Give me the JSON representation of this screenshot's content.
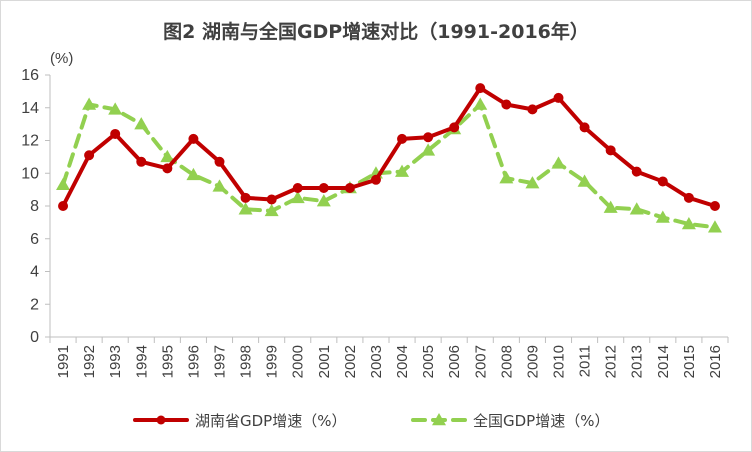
{
  "chart_data": {
    "type": "line",
    "title": "图2 湖南与全国GDP增速对比（1991-2016年）",
    "ylabel": "(%)",
    "xlabel": "",
    "ylim": [
      0,
      16
    ],
    "yticks": [
      0,
      2,
      4,
      6,
      8,
      10,
      12,
      14,
      16
    ],
    "grid": false,
    "legend_position": "bottom",
    "categories": [
      "1991",
      "1992",
      "1993",
      "1994",
      "1995",
      "1996",
      "1997",
      "1998",
      "1999",
      "2000",
      "2001",
      "2002",
      "2003",
      "2004",
      "2005",
      "2006",
      "2007",
      "2008",
      "2009",
      "2010",
      "2011",
      "2012",
      "2013",
      "2014",
      "2015",
      "2016"
    ],
    "series": [
      {
        "name": "湖南省GDP增速（%）",
        "color": "#C00000",
        "style": "solid",
        "marker": "circle",
        "values": [
          8.0,
          11.1,
          12.4,
          10.7,
          10.3,
          12.1,
          10.7,
          8.5,
          8.4,
          9.1,
          9.1,
          9.1,
          9.6,
          12.1,
          12.2,
          12.8,
          15.2,
          14.2,
          13.9,
          14.6,
          12.8,
          11.4,
          10.1,
          9.5,
          8.5,
          8.0
        ]
      },
      {
        "name": "全国GDP增速（%）",
        "color": "#92D050",
        "style": "dashed",
        "marker": "triangle",
        "values": [
          9.3,
          14.2,
          13.9,
          13.0,
          11.0,
          9.9,
          9.2,
          7.8,
          7.7,
          8.5,
          8.3,
          9.1,
          10.0,
          10.1,
          11.4,
          12.7,
          14.2,
          9.7,
          9.4,
          10.6,
          9.5,
          7.9,
          7.8,
          7.3,
          6.9,
          6.7
        ]
      }
    ]
  }
}
